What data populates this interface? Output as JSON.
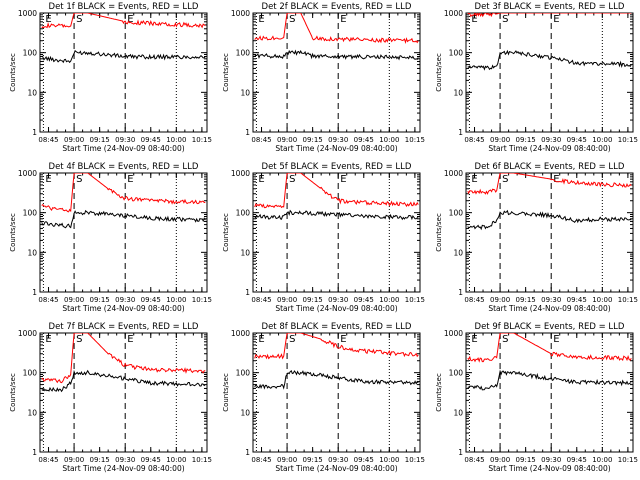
{
  "figure": {
    "xlabel": "Start Time (24-Nov-09 08:40:00)",
    "ylabel": "Counts/sec",
    "x_tick_labels": [
      "08:45",
      "09:00",
      "09:15",
      "09:30",
      "09:45",
      "10:00",
      "10:15"
    ],
    "y_tick_labels": [
      "1",
      "10",
      "100",
      "1000"
    ],
    "marker_labels": [
      "E",
      "S",
      "E"
    ],
    "colors": {
      "events": "#000000",
      "lld": "#ff0000",
      "axes": "#000000"
    }
  },
  "chart_data": [
    {
      "type": "line",
      "title": "Det 1f BLACK = Events, RED = LLD",
      "xlabel": "Start Time (24-Nov-09 08:40:00)",
      "ylabel": "Counts/sec",
      "y_scale": "log",
      "ylim": [
        1,
        1000
      ],
      "x_ticks": [
        "08:45",
        "09:00",
        "09:15",
        "09:30",
        "09:45",
        "10:00",
        "10:15"
      ],
      "markers": [
        {
          "label": "E",
          "time": "08:42",
          "style": "dotted"
        },
        {
          "label": "S",
          "time": "09:00",
          "style": "dashed"
        },
        {
          "label": "E",
          "time": "09:30",
          "style": "dashed"
        },
        {
          "label": "",
          "time": "10:00",
          "style": "dotted"
        }
      ],
      "series": [
        {
          "name": "LLD",
          "color": "red",
          "x": [
            "08:41",
            "08:58",
            "09:00",
            "09:08",
            "09:29",
            "09:30",
            "09:45",
            "10:17"
          ],
          "y": [
            480,
            470,
            1000,
            1000,
            620,
            590,
            550,
            480
          ]
        },
        {
          "name": "Events",
          "color": "black",
          "x": [
            "08:41",
            "08:50",
            "08:58",
            "09:00",
            "09:08",
            "09:30",
            "09:45",
            "10:17"
          ],
          "y": [
            75,
            65,
            60,
            100,
            100,
            80,
            78,
            78
          ]
        }
      ]
    },
    {
      "type": "line",
      "title": "Det 2f BLACK = Events, RED = LLD",
      "xlabel": "Start Time (24-Nov-09 08:40:00)",
      "ylabel": "Counts/sec",
      "y_scale": "log",
      "ylim": [
        1,
        1000
      ],
      "x_ticks": [
        "08:45",
        "09:00",
        "09:15",
        "09:30",
        "09:45",
        "10:00",
        "10:15"
      ],
      "markers": [
        {
          "label": "E",
          "time": "08:42",
          "style": "dotted"
        },
        {
          "label": "S",
          "time": "09:00",
          "style": "dashed"
        },
        {
          "label": "E",
          "time": "09:30",
          "style": "dashed"
        },
        {
          "label": "",
          "time": "10:00",
          "style": "dotted"
        }
      ],
      "series": [
        {
          "name": "LLD",
          "color": "red",
          "x": [
            "08:41",
            "08:58",
            "09:00",
            "09:08",
            "09:15",
            "09:30",
            "09:45",
            "10:17"
          ],
          "y": [
            230,
            240,
            1000,
            1000,
            230,
            220,
            210,
            200
          ]
        },
        {
          "name": "Events",
          "color": "black",
          "x": [
            "08:41",
            "08:58",
            "09:00",
            "09:08",
            "09:15",
            "09:30",
            "09:45",
            "10:17"
          ],
          "y": [
            85,
            80,
            100,
            100,
            82,
            80,
            78,
            76
          ]
        }
      ]
    },
    {
      "type": "line",
      "title": "Det 3f BLACK = Events, RED = LLD",
      "xlabel": "Start Time (24-Nov-09 08:40:00)",
      "ylabel": "Counts/sec",
      "y_scale": "log",
      "ylim": [
        1,
        1000
      ],
      "x_ticks": [
        "08:45",
        "09:00",
        "09:15",
        "09:30",
        "09:45",
        "10:00",
        "10:15"
      ],
      "markers": [
        {
          "label": "E",
          "time": "08:42",
          "style": "dotted"
        },
        {
          "label": "S",
          "time": "09:00",
          "style": "dashed"
        },
        {
          "label": "E",
          "time": "09:30",
          "style": "dashed"
        },
        {
          "label": "",
          "time": "10:00",
          "style": "dotted"
        }
      ],
      "series": [
        {
          "name": "LLD",
          "color": "red",
          "x": [
            "08:41",
            "08:58",
            "09:00",
            "09:30",
            "10:17"
          ],
          "y": [
            900,
            950,
            1000,
            1000,
            1000
          ]
        },
        {
          "name": "Events",
          "color": "black",
          "x": [
            "08:41",
            "08:52",
            "08:58",
            "09:00",
            "09:08",
            "09:30",
            "09:45",
            "10:17"
          ],
          "y": [
            45,
            40,
            45,
            100,
            100,
            75,
            55,
            50
          ]
        }
      ]
    },
    {
      "type": "line",
      "title": "Det 4f BLACK = Events, RED = LLD",
      "xlabel": "Start Time (24-Nov-09 08:40:00)",
      "ylabel": "Counts/sec",
      "y_scale": "log",
      "ylim": [
        1,
        1000
      ],
      "x_ticks": [
        "08:45",
        "09:00",
        "09:15",
        "09:30",
        "09:45",
        "10:00",
        "10:15"
      ],
      "markers": [
        {
          "label": "E",
          "time": "08:42",
          "style": "dotted"
        },
        {
          "label": "S",
          "time": "09:00",
          "style": "dashed"
        },
        {
          "label": "E",
          "time": "09:30",
          "style": "dashed"
        },
        {
          "label": "",
          "time": "10:00",
          "style": "dotted"
        }
      ],
      "series": [
        {
          "name": "LLD",
          "color": "red",
          "x": [
            "08:41",
            "08:50",
            "08:58",
            "09:00",
            "09:08",
            "09:20",
            "09:30",
            "09:45",
            "10:17"
          ],
          "y": [
            150,
            120,
            110,
            1000,
            1000,
            400,
            230,
            200,
            180
          ]
        },
        {
          "name": "Events",
          "color": "black",
          "x": [
            "08:41",
            "08:58",
            "09:00",
            "09:08",
            "09:30",
            "09:45",
            "10:17"
          ],
          "y": [
            55,
            45,
            100,
            100,
            85,
            72,
            65
          ]
        }
      ]
    },
    {
      "type": "line",
      "title": "Det 5f BLACK = Events, RED = LLD",
      "xlabel": "Start Time (24-Nov-09 08:40:00)",
      "ylabel": "Counts/sec",
      "y_scale": "log",
      "ylim": [
        1,
        1000
      ],
      "x_ticks": [
        "08:45",
        "09:00",
        "09:15",
        "09:30",
        "09:45",
        "10:00",
        "10:15"
      ],
      "markers": [
        {
          "label": "E",
          "time": "08:42",
          "style": "dotted"
        },
        {
          "label": "S",
          "time": "09:00",
          "style": "dashed"
        },
        {
          "label": "E",
          "time": "09:30",
          "style": "dashed"
        },
        {
          "label": "",
          "time": "10:00",
          "style": "dotted"
        }
      ],
      "series": [
        {
          "name": "LLD",
          "color": "red",
          "x": [
            "08:41",
            "08:58",
            "09:00",
            "09:08",
            "09:20",
            "09:30",
            "09:45",
            "10:17"
          ],
          "y": [
            150,
            140,
            1000,
            1000,
            400,
            200,
            180,
            160
          ]
        },
        {
          "name": "Events",
          "color": "black",
          "x": [
            "08:41",
            "08:58",
            "09:00",
            "09:08",
            "09:30",
            "09:45",
            "10:17"
          ],
          "y": [
            80,
            75,
            100,
            100,
            90,
            80,
            75
          ]
        }
      ]
    },
    {
      "type": "line",
      "title": "Det 6f BLACK = Events, RED = LLD",
      "xlabel": "Start Time (24-Nov-09 08:40:00)",
      "ylabel": "Counts/sec",
      "y_scale": "log",
      "ylim": [
        1,
        1000
      ],
      "x_ticks": [
        "08:45",
        "09:00",
        "09:15",
        "09:30",
        "09:45",
        "10:00",
        "10:15"
      ],
      "markers": [
        {
          "label": "E",
          "time": "08:42",
          "style": "dotted"
        },
        {
          "label": "S",
          "time": "09:00",
          "style": "dashed"
        },
        {
          "label": "E",
          "time": "09:30",
          "style": "dashed"
        },
        {
          "label": "",
          "time": "10:00",
          "style": "dotted"
        }
      ],
      "series": [
        {
          "name": "LLD",
          "color": "red",
          "x": [
            "08:41",
            "08:52",
            "08:58",
            "09:00",
            "09:08",
            "09:30",
            "09:45",
            "10:17"
          ],
          "y": [
            340,
            330,
            360,
            1000,
            1000,
            700,
            560,
            480
          ]
        },
        {
          "name": "Events",
          "color": "black",
          "x": [
            "08:41",
            "08:52",
            "08:58",
            "09:00",
            "09:08",
            "09:30",
            "09:45",
            "10:00",
            "10:17"
          ],
          "y": [
            40,
            45,
            60,
            100,
            100,
            85,
            62,
            70,
            65
          ]
        }
      ]
    },
    {
      "type": "line",
      "title": "Det 7f BLACK = Events, RED = LLD",
      "xlabel": "Start Time (24-Nov-09 08:40:00)",
      "ylabel": "Counts/sec",
      "y_scale": "log",
      "ylim": [
        1,
        1000
      ],
      "x_ticks": [
        "08:45",
        "09:00",
        "09:15",
        "09:30",
        "09:45",
        "10:00",
        "10:15"
      ],
      "markers": [
        {
          "label": "E",
          "time": "08:42",
          "style": "dotted"
        },
        {
          "label": "S",
          "time": "09:00",
          "style": "dashed"
        },
        {
          "label": "E",
          "time": "09:30",
          "style": "dashed"
        },
        {
          "label": "",
          "time": "10:00",
          "style": "dotted"
        }
      ],
      "series": [
        {
          "name": "LLD",
          "color": "red",
          "x": [
            "08:41",
            "08:52",
            "08:58",
            "09:00",
            "09:08",
            "09:20",
            "09:30",
            "09:45",
            "10:17"
          ],
          "y": [
            70,
            60,
            90,
            1000,
            1000,
            300,
            150,
            120,
            110
          ]
        },
        {
          "name": "Events",
          "color": "black",
          "x": [
            "08:41",
            "08:52",
            "08:58",
            "09:00",
            "09:08",
            "09:30",
            "09:45",
            "10:17"
          ],
          "y": [
            40,
            35,
            55,
            100,
            100,
            70,
            55,
            50
          ]
        }
      ]
    },
    {
      "type": "line",
      "title": "Det 8f BLACK = Events, RED = LLD",
      "xlabel": "Start Time (24-Nov-09 08:40:00)",
      "ylabel": "Counts/sec",
      "y_scale": "log",
      "ylim": [
        1,
        1000
      ],
      "x_ticks": [
        "08:45",
        "09:00",
        "09:15",
        "09:30",
        "09:45",
        "10:00",
        "10:15"
      ],
      "markers": [
        {
          "label": "E",
          "time": "08:42",
          "style": "dotted"
        },
        {
          "label": "S",
          "time": "09:00",
          "style": "dashed"
        },
        {
          "label": "E",
          "time": "09:30",
          "style": "dashed"
        },
        {
          "label": "",
          "time": "10:00",
          "style": "dotted"
        }
      ],
      "series": [
        {
          "name": "LLD",
          "color": "red",
          "x": [
            "08:41",
            "08:58",
            "09:00",
            "09:08",
            "09:20",
            "09:30",
            "09:45",
            "10:17"
          ],
          "y": [
            250,
            260,
            1000,
            1000,
            700,
            450,
            350,
            280
          ]
        },
        {
          "name": "Events",
          "color": "black",
          "x": [
            "08:41",
            "08:58",
            "09:00",
            "09:08",
            "09:30",
            "09:45",
            "10:17"
          ],
          "y": [
            45,
            45,
            100,
            100,
            75,
            60,
            55
          ]
        }
      ]
    },
    {
      "type": "line",
      "title": "Det 9f BLACK = Events, RED = LLD",
      "xlabel": "Start Time (24-Nov-09 08:40:00)",
      "ylabel": "Counts/sec",
      "y_scale": "log",
      "ylim": [
        1,
        1000
      ],
      "x_ticks": [
        "08:45",
        "09:00",
        "09:15",
        "09:30",
        "09:45",
        "10:00",
        "10:15"
      ],
      "markers": [
        {
          "label": "E",
          "time": "08:42",
          "style": "dotted"
        },
        {
          "label": "S",
          "time": "09:00",
          "style": "dashed"
        },
        {
          "label": "E",
          "time": "09:30",
          "style": "dashed"
        },
        {
          "label": "",
          "time": "10:00",
          "style": "dotted"
        }
      ],
      "series": [
        {
          "name": "LLD",
          "color": "red",
          "x": [
            "08:41",
            "08:52",
            "08:58",
            "09:00",
            "09:08",
            "09:30",
            "09:45",
            "10:17"
          ],
          "y": [
            230,
            200,
            240,
            1000,
            1000,
            300,
            250,
            230
          ]
        },
        {
          "name": "Events",
          "color": "black",
          "x": [
            "08:41",
            "08:52",
            "08:58",
            "09:00",
            "09:08",
            "09:30",
            "09:45",
            "10:17"
          ],
          "y": [
            45,
            40,
            50,
            100,
            100,
            70,
            58,
            55
          ]
        }
      ]
    }
  ]
}
